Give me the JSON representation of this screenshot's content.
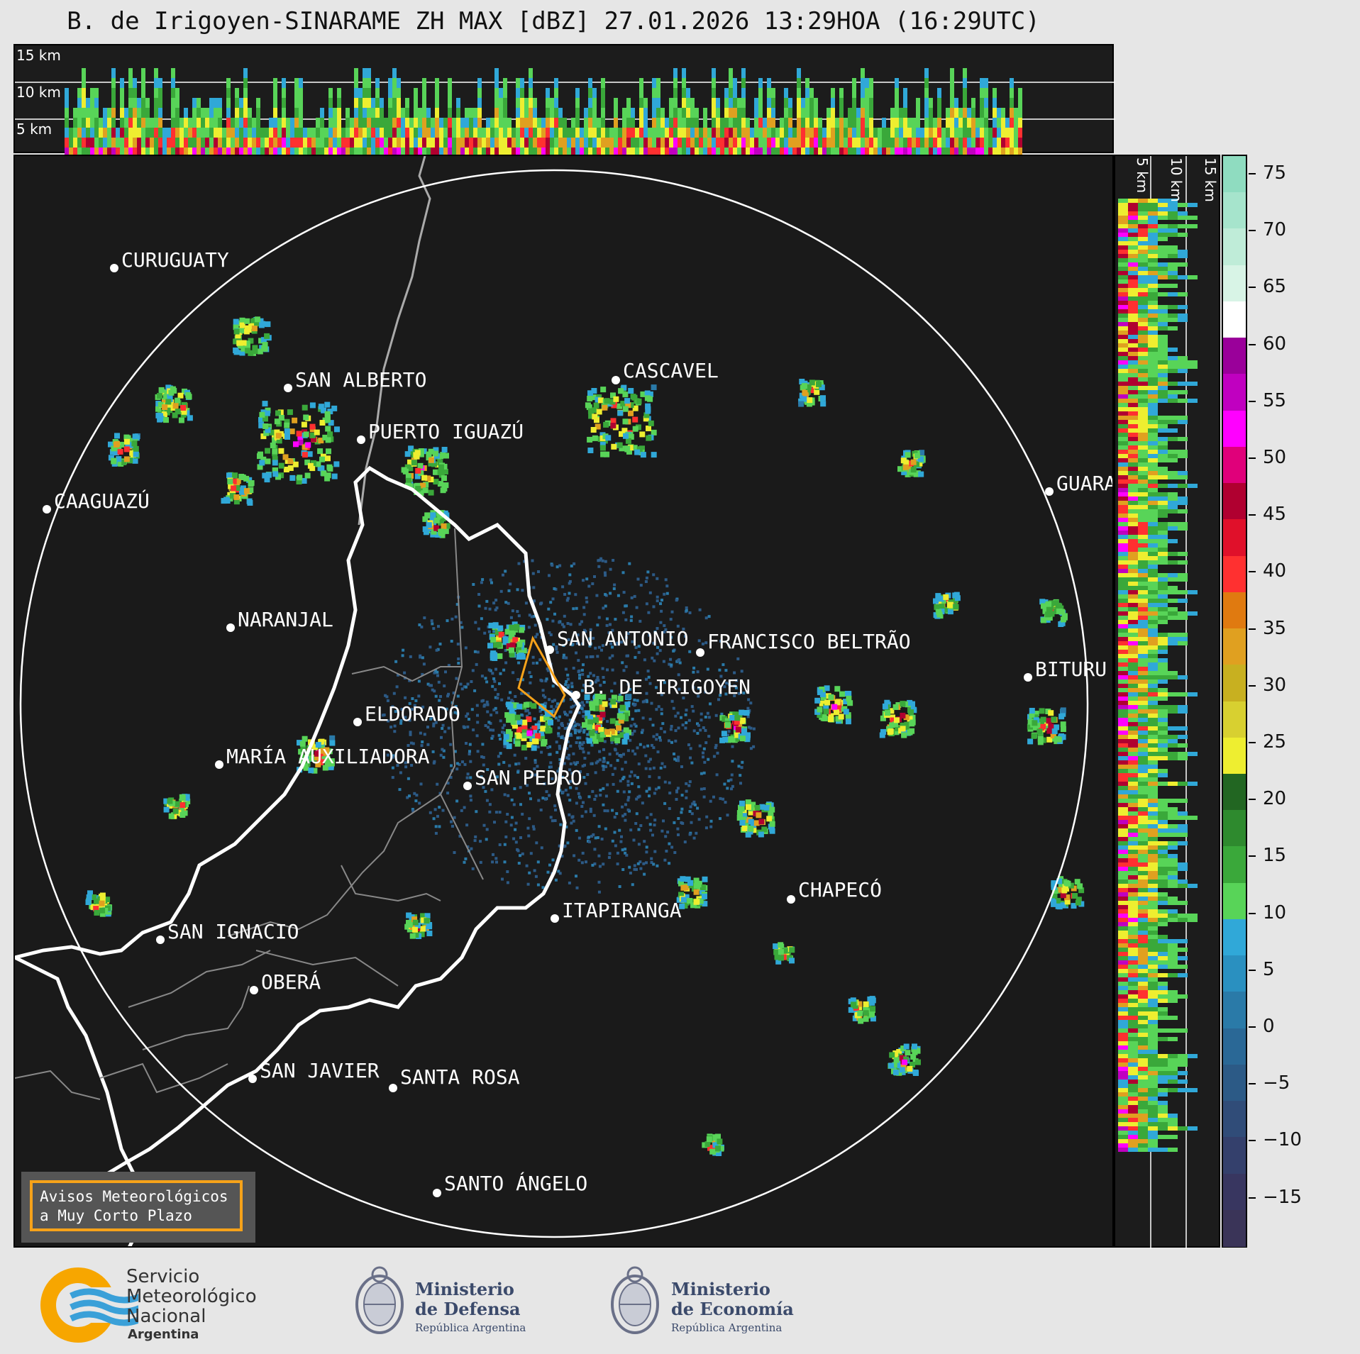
{
  "title": "B. de Irigoyen-SINARAME ZH MAX [dBZ] 27.01.2026 13:29HOA (16:29UTC)",
  "top_panel": {
    "levels": [
      "15 km",
      "10 km",
      "5 km"
    ]
  },
  "side_panel": {
    "levels": [
      "5 km",
      "10 km",
      "15 km"
    ]
  },
  "colorbar": {
    "ticks": [
      "75",
      "70",
      "65",
      "60",
      "55",
      "50",
      "45",
      "40",
      "35",
      "30",
      "25",
      "20",
      "15",
      "10",
      "5",
      "0",
      "−5",
      "−10",
      "−15"
    ],
    "colors": [
      "#8fdcc0",
      "#a6e4cc",
      "#bfecd8",
      "#d8f4e6",
      "#ffffff",
      "#9a009a",
      "#c000c0",
      "#ff00ff",
      "#e0007a",
      "#b00030",
      "#e0102a",
      "#ff3030",
      "#e07a10",
      "#e0a020",
      "#c8b020",
      "#d8d030",
      "#eeee30",
      "#226622",
      "#2e8a2e",
      "#3aa83a",
      "#58d458",
      "#30a8d8",
      "#2a90c0",
      "#2a7aa8",
      "#2a6896",
      "#2c5a86",
      "#304c78",
      "#34406c",
      "#383660",
      "#3a3458"
    ]
  },
  "cities": [
    {
      "name": "CURUGUATY"
    },
    {
      "name": "SAN ALBERTO"
    },
    {
      "name": "CAAGUAZÚ"
    },
    {
      "name": "PUERTO IGUAZÚ"
    },
    {
      "name": "CASCAVEL"
    },
    {
      "name": "GUARA"
    },
    {
      "name": "NARANJAL"
    },
    {
      "name": "SAN ANTONIO"
    },
    {
      "name": "FRANCISCO BELTRÃO"
    },
    {
      "name": "BITURU"
    },
    {
      "name": "B. DE IRIGOYEN"
    },
    {
      "name": "ELDORADO"
    },
    {
      "name": "MARÍA AUXILIADORA"
    },
    {
      "name": "SAN PEDRO"
    },
    {
      "name": "CHAPECÓ"
    },
    {
      "name": "ITAPIRANGA"
    },
    {
      "name": "SAN IGNACIO"
    },
    {
      "name": "OBERÁ"
    },
    {
      "name": "SAN JAVIER"
    },
    {
      "name": "SANTA ROSA"
    },
    {
      "name": "SANTO ÁNGELO"
    }
  ],
  "avisos": {
    "line1": "Avisos Meteorológicos",
    "line2": "a Muy Corto Plazo"
  },
  "footer": {
    "smn": {
      "line1": "Servicio",
      "line2": "Meteorológico",
      "line3": "Nacional",
      "line4": "Argentina"
    },
    "defensa": {
      "line1": "Ministerio",
      "line2": "de Defensa",
      "line3": "República Argentina"
    },
    "economia": {
      "line1": "Ministerio",
      "line2": "de Economía",
      "line3": "República Argentina"
    }
  }
}
